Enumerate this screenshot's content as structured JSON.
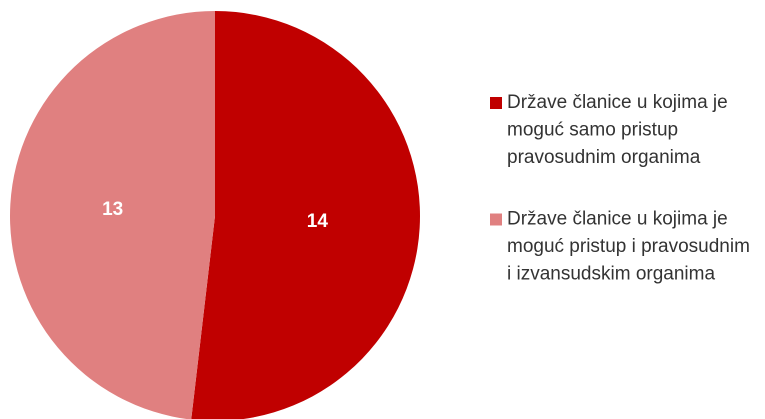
{
  "chart_data": {
    "type": "pie",
    "series": [
      {
        "name": "Države članice u kojima je moguć samo pristup pravosudnim organima",
        "color": "#c00000",
        "values": [
          14
        ]
      },
      {
        "name": "Države članice u kojima je moguć pristup i pravosudnim i izvansudskim organima",
        "color": "#e08080",
        "values": [
          13
        ]
      }
    ]
  }
}
